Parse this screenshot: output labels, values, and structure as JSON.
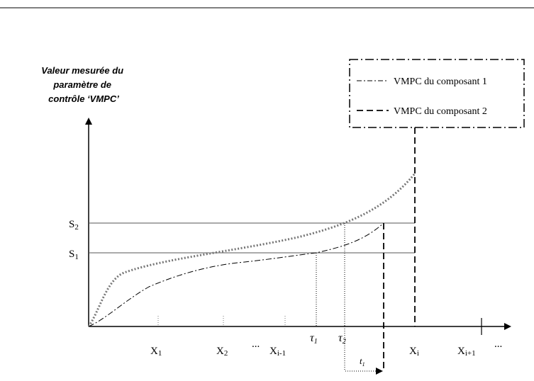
{
  "diagram": {
    "y_axis_label": [
      "Valeur mesurée du",
      "paramètre de",
      "contrôle  ‘VMPC’"
    ],
    "legend": {
      "entries": [
        {
          "text": "VMPC  du composant 1",
          "style": "dash-dot"
        },
        {
          "text": "VMPC  du composant 2",
          "style": "long-dash"
        }
      ]
    },
    "thresholds": [
      {
        "base": "S",
        "sub": "2"
      },
      {
        "base": "S",
        "sub": "1"
      }
    ],
    "x_ticks": [
      {
        "base": "X",
        "sub": "1"
      },
      {
        "base": "X",
        "sub": "2"
      },
      {
        "text": "..."
      },
      {
        "base": "X",
        "sub": "i-1"
      },
      {
        "base": "X",
        "sub": "i"
      },
      {
        "base": "X",
        "sub": "i+1"
      },
      {
        "text": "..."
      }
    ],
    "tau_labels": [
      {
        "base": "τ",
        "sub": "1"
      },
      {
        "base": "τ",
        "sub": "2"
      }
    ],
    "interval_label": {
      "base": "t",
      "sub": "1"
    },
    "colors": {
      "line": "#000000",
      "dotted_curve": "#777777",
      "threshold": "#555555"
    }
  }
}
